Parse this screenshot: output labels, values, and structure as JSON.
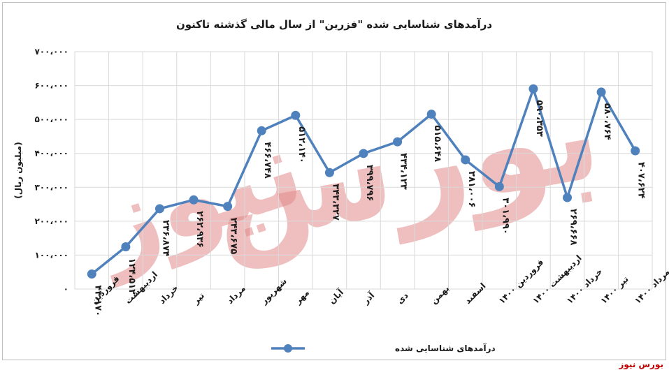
{
  "chart_data": {
    "type": "line",
    "title": "درآمدهای شناسایی شده \"فزرین\" از سال مالی گذشته تاکنون",
    "ylabel": "(میلیون ریال)",
    "xlabel": "",
    "ylim": [
      0,
      700000
    ],
    "yticks": [
      0,
      100000,
      200000,
      300000,
      400000,
      500000,
      600000,
      700000
    ],
    "ytick_labels": [
      "۰",
      "۱۰۰،۰۰۰",
      "۲۰۰،۰۰۰",
      "۳۰۰،۰۰۰",
      "۴۰۰،۰۰۰",
      "۵۰۰،۰۰۰",
      "۶۰۰،۰۰۰",
      "۷۰۰،۰۰۰"
    ],
    "grid": true,
    "legend_position": "bottom",
    "categories": [
      "فروردین",
      "اردیبهشت",
      "خرداد",
      "تیر",
      "مرداد",
      "شهریور",
      "مهر",
      "آبان",
      "آذر",
      "دی",
      "بهمن",
      "اسفند",
      "فروردین ۱۴۰۰",
      "اردیبهشت ۱۴۰۰",
      "خرداد ۱۴۰۰",
      "تیر ۱۴۰۰",
      "مرداد ۱۴۰۰"
    ],
    "series": [
      {
        "name": "درآمدهای شناسایی شده",
        "color": "#4f81bd",
        "values": [
          44170,
          124512,
          236874,
          262936,
          243675,
          466748,
          512140,
          343327,
          399796,
          434123,
          515648,
          381006,
          301990,
          590353,
          269668,
          580764,
          407624
        ],
        "value_labels": [
          "۴۴،۱۷۰",
          "۱۲۴،۵۱۲",
          "۲۳۶،۸۷۴",
          "۲۶۲،۹۳۶",
          "۲۴۳،۶۷۵",
          "۴۶۶،۷۴۸",
          "۵۱۲،۱۴۰",
          "۳۴۳،۳۲۷",
          "۳۹۹،۷۹۶",
          "۴۳۴،۱۲۳",
          "۵۱۵،۶۴۸",
          "۳۸۱،۰۰۶",
          "۳۰۱،۹۹۰",
          "۵۹۰،۳۵۳",
          "۲۶۹،۶۶۸",
          "۵۸۰،۷۶۴",
          "۴۰۷،۶۲۴"
        ]
      }
    ]
  },
  "watermark": "بورس نیوز",
  "source_label": "بورس نیوز"
}
